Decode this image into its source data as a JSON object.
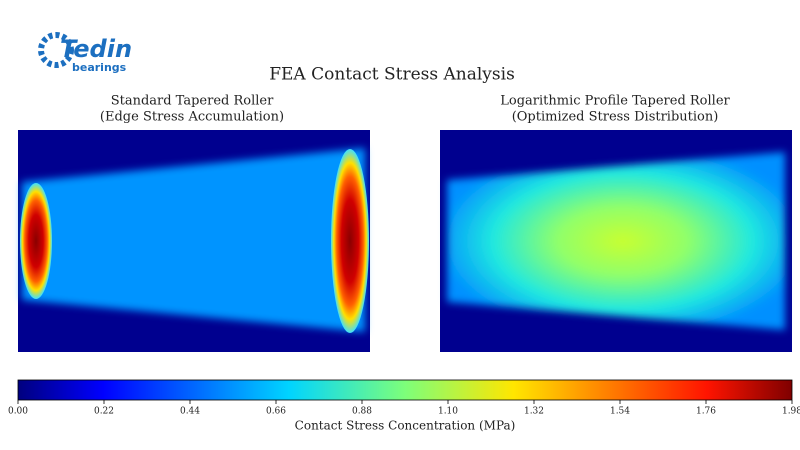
{
  "logo": {
    "name": "Tedin",
    "tagline": "bearings"
  },
  "chart_data": {
    "type": "heatmap",
    "title": "FEA Contact Stress Analysis",
    "panels": [
      {
        "title": "Standard Tapered Roller",
        "subtitle": "(Edge Stress Accumulation)"
      },
      {
        "title": "Logarithmic Profile Tapered Roller",
        "subtitle": "(Optimized Stress Distribution)"
      }
    ],
    "colorbar": {
      "label": "Contact Stress Concentration (MPa)",
      "lim": [
        0,
        1.98
      ],
      "ticks": [
        {
          "value": 0,
          "label": "0.00"
        },
        {
          "value": 0.22,
          "label": "0.22"
        },
        {
          "value": 0.44,
          "label": "0.44"
        },
        {
          "value": 0.66,
          "label": "0.66"
        },
        {
          "value": 0.88,
          "label": "0.88"
        },
        {
          "value": 1.1,
          "label": "1.10"
        },
        {
          "value": 1.32,
          "label": "1.32"
        },
        {
          "value": 1.54,
          "label": "1.54"
        },
        {
          "value": 1.76,
          "label": "1.76"
        },
        {
          "value": 1.98,
          "label": "1.98"
        }
      ],
      "colormap": "jet"
    }
  }
}
